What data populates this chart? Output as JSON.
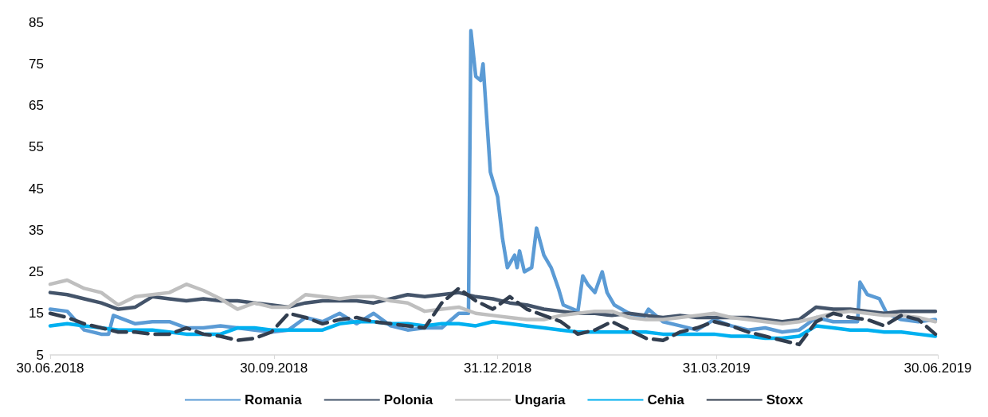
{
  "chart_data": {
    "type": "line",
    "xlim": [
      "2018-06-30",
      "2019-06-30"
    ],
    "xticks": [
      {
        "value": "2018-06-30",
        "label": "30.06.2018"
      },
      {
        "value": "2018-09-30",
        "label": "30.09.2018"
      },
      {
        "value": "2018-12-31",
        "label": "31.12.2018"
      },
      {
        "value": "2019-03-31",
        "label": "31.03.2019"
      },
      {
        "value": "2019-06-30",
        "label": "30.06.2019"
      }
    ],
    "ylim": [
      5,
      85
    ],
    "yticks": [
      5,
      15,
      25,
      35,
      45,
      55,
      65,
      75,
      85
    ],
    "grid": false,
    "legend": "bottom",
    "marker": "none",
    "x": [
      "2018-06-30",
      "2018-07-07",
      "2018-07-14",
      "2018-07-21",
      "2018-07-28",
      "2018-08-04",
      "2018-08-11",
      "2018-08-18",
      "2018-08-25",
      "2018-09-01",
      "2018-09-08",
      "2018-09-15",
      "2018-09-22",
      "2018-09-29",
      "2018-10-06",
      "2018-10-13",
      "2018-10-20",
      "2018-10-27",
      "2018-11-03",
      "2018-11-10",
      "2018-11-17",
      "2018-11-24",
      "2018-12-01",
      "2018-12-08",
      "2018-12-15",
      "2018-12-22",
      "2018-12-29",
      "2019-01-05",
      "2019-01-12",
      "2019-01-19",
      "2019-01-26",
      "2019-02-02",
      "2019-02-09",
      "2019-02-16",
      "2019-02-23",
      "2019-03-02",
      "2019-03-09",
      "2019-03-16",
      "2019-03-23",
      "2019-03-30",
      "2019-04-06",
      "2019-04-13",
      "2019-04-20",
      "2019-04-27",
      "2019-05-04",
      "2019-05-11",
      "2019-05-18",
      "2019-05-25",
      "2019-06-01",
      "2019-06-08",
      "2019-06-15",
      "2019-06-22",
      "2019-06-29"
    ],
    "series": [
      {
        "name": "Romania",
        "color": "#5b9bd5",
        "line_style": "solid",
        "x": [
          "2018-06-30",
          "2018-07-07",
          "2018-07-14",
          "2018-07-21",
          "2018-07-24",
          "2018-07-26",
          "2018-08-04",
          "2018-08-11",
          "2018-08-18",
          "2018-08-25",
          "2018-09-01",
          "2018-09-08",
          "2018-09-15",
          "2018-09-22",
          "2018-09-29",
          "2018-10-06",
          "2018-10-13",
          "2018-10-20",
          "2018-10-27",
          "2018-11-03",
          "2018-11-10",
          "2018-11-17",
          "2018-11-24",
          "2018-12-01",
          "2018-12-08",
          "2018-12-15",
          "2018-12-19",
          "2018-12-20",
          "2018-12-22",
          "2018-12-24",
          "2018-12-25",
          "2018-12-28",
          "2018-12-31",
          "2019-01-02",
          "2019-01-04",
          "2019-01-07",
          "2019-01-08",
          "2019-01-09",
          "2019-01-11",
          "2019-01-14",
          "2019-01-16",
          "2019-01-19",
          "2019-01-22",
          "2019-01-25",
          "2019-01-27",
          "2019-02-02",
          "2019-02-04",
          "2019-02-06",
          "2019-02-09",
          "2019-02-12",
          "2019-02-14",
          "2019-02-17",
          "2019-02-23",
          "2019-03-01",
          "2019-03-03",
          "2019-03-09",
          "2019-03-16",
          "2019-03-23",
          "2019-03-30",
          "2019-04-06",
          "2019-04-13",
          "2019-04-20",
          "2019-04-27",
          "2019-05-04",
          "2019-05-11",
          "2019-05-18",
          "2019-05-25",
          "2019-05-28",
          "2019-05-29",
          "2019-06-01",
          "2019-06-06",
          "2019-06-09",
          "2019-06-15",
          "2019-06-22",
          "2019-06-29"
        ],
        "values": [
          16,
          15.5,
          11,
          10,
          10,
          14.5,
          12.5,
          13,
          13,
          11.5,
          11.5,
          12,
          11.5,
          11,
          10.5,
          11,
          14,
          13,
          15,
          12.5,
          15,
          12,
          11,
          11.5,
          11.5,
          15,
          15,
          83,
          72,
          71,
          75,
          49,
          43,
          33,
          26,
          29,
          26,
          30,
          25,
          26,
          35.5,
          29,
          26,
          21,
          17,
          15.5,
          24,
          22,
          20,
          25,
          20,
          17,
          15,
          14,
          16,
          13,
          12,
          11,
          13.5,
          12,
          11,
          11.5,
          10.5,
          11,
          14,
          13,
          13,
          13,
          22.5,
          19.5,
          18.5,
          15,
          13.5,
          13,
          13.5
        ]
      },
      {
        "name": "Polonia",
        "color": "#44546a",
        "line_style": "solid",
        "values": [
          20,
          19.5,
          18.5,
          17.5,
          16,
          16.5,
          19,
          18.5,
          18,
          18.5,
          18,
          18,
          17.5,
          17,
          16.5,
          17.5,
          18,
          18,
          18,
          17.5,
          18.5,
          19.5,
          19,
          19.5,
          20,
          19,
          18.5,
          17.5,
          17,
          16,
          15.5,
          15,
          15,
          14.5,
          15,
          14.5,
          14,
          14.5,
          14,
          14,
          14,
          14,
          13.5,
          13,
          13.5,
          16.5,
          16,
          16,
          15.5,
          15,
          15.5,
          15.5,
          15.5
        ]
      },
      {
        "name": "Ungaria",
        "color": "#bfbfbf",
        "line_style": "solid",
        "values": [
          22,
          23,
          21,
          20,
          17,
          19,
          19.5,
          20,
          22,
          20.5,
          18.5,
          16,
          17.5,
          16.5,
          16.5,
          19.5,
          19,
          18.5,
          19,
          19,
          18,
          17.5,
          15.5,
          16,
          16.5,
          15,
          14.5,
          14,
          13.5,
          13.5,
          14.5,
          15,
          15.5,
          15.5,
          14,
          13.5,
          13.5,
          14,
          14.5,
          15,
          14,
          13.5,
          13,
          12.5,
          13,
          14,
          15,
          15.5,
          15,
          14.5,
          14.5,
          14,
          13
        ]
      },
      {
        "name": "Cehia",
        "color": "#00b0f0",
        "line_style": "solid",
        "values": [
          12,
          12.5,
          12,
          11.5,
          11,
          11,
          11,
          10.5,
          10,
          10,
          10,
          11.5,
          11.5,
          11,
          11,
          11,
          11,
          12.5,
          13,
          13,
          12.5,
          12.5,
          12,
          12.5,
          12.5,
          12,
          13,
          12.5,
          12,
          11.5,
          11,
          10.5,
          10.5,
          10.5,
          10.5,
          10.5,
          10,
          10,
          10,
          10,
          9.5,
          9.5,
          9,
          9,
          9.5,
          12,
          11.5,
          11,
          11,
          10.5,
          10.5,
          10,
          9.5
        ]
      },
      {
        "name": "Stoxx",
        "color": "#323e4f",
        "line_style": "dashed",
        "values": [
          15,
          14,
          12.5,
          11.5,
          10.5,
          10.5,
          10,
          10,
          11.5,
          10,
          9.5,
          8.5,
          9,
          10.5,
          15,
          14,
          12.5,
          13.5,
          14,
          13,
          12.5,
          12,
          11.5,
          17.5,
          21,
          18,
          16,
          19,
          16,
          14.5,
          13,
          10,
          11,
          13,
          11,
          9,
          8.5,
          10.5,
          11.5,
          13,
          12,
          10.5,
          9.5,
          8.5,
          7.5,
          13,
          15,
          14,
          13.5,
          12,
          14.5,
          13.5,
          10
        ]
      }
    ]
  }
}
